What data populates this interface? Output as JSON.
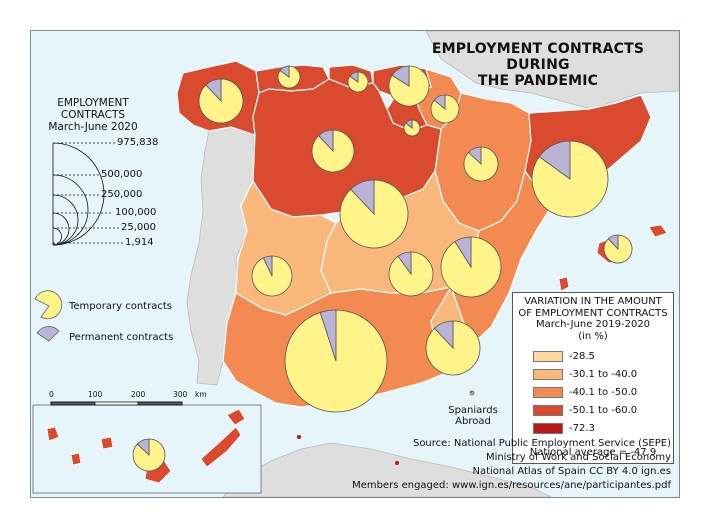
{
  "title": {
    "line1": "EMPLOYMENT CONTRACTS DURING",
    "line2": "THE PANDEMIC"
  },
  "size_legend": {
    "title_line1": "EMPLOYMENT",
    "title_line2": "CONTRACTS",
    "title_line3": "March-June 2020",
    "values": [
      "975,838",
      "500,000",
      "250,000",
      "100,000",
      "25,000",
      "1,914"
    ]
  },
  "pie_legend": {
    "temporary": "Temporary contracts",
    "permanent": "Permanent contracts",
    "temporary_color": "#fff38a",
    "permanent_color": "#b9b4d6"
  },
  "choropleth_legend": {
    "title_line1": "VARIATION IN THE AMOUNT",
    "title_line2": "OF EMPLOYMENT  CONTRACTS",
    "title_line3": "March-June 2019-2020",
    "title_line4": "(in %)",
    "classes": [
      {
        "label": "-28.5",
        "color": "#fdd9a0"
      },
      {
        "label": "-30.1 to -40.0",
        "color": "#f9b77c"
      },
      {
        "label": "-40.1 to -50.0",
        "color": "#f28a52"
      },
      {
        "label": "-50.1 to -60.0",
        "color": "#d94a2e"
      },
      {
        "label": "-72.3",
        "color": "#b81818"
      }
    ],
    "national_average": "National average = -47.9"
  },
  "scale_bar": {
    "ticks": [
      "0",
      "100",
      "200",
      "300"
    ],
    "unit": "km"
  },
  "abroad": {
    "line1": "Spaniards",
    "line2": "Abroad"
  },
  "source": {
    "line1": "Source: National Public Employment Service (SEPE)",
    "line2": "Ministry of Work and Social Economy",
    "line3": "National Atlas of Spain CC BY 4.0 ign.es",
    "line4": "Members engaged: www.ign.es/resources/ane/participantes.pdf"
  },
  "colors": {
    "sea": "#e6f5fa",
    "neighbor": "#dedede",
    "border": "#ffffff"
  }
}
